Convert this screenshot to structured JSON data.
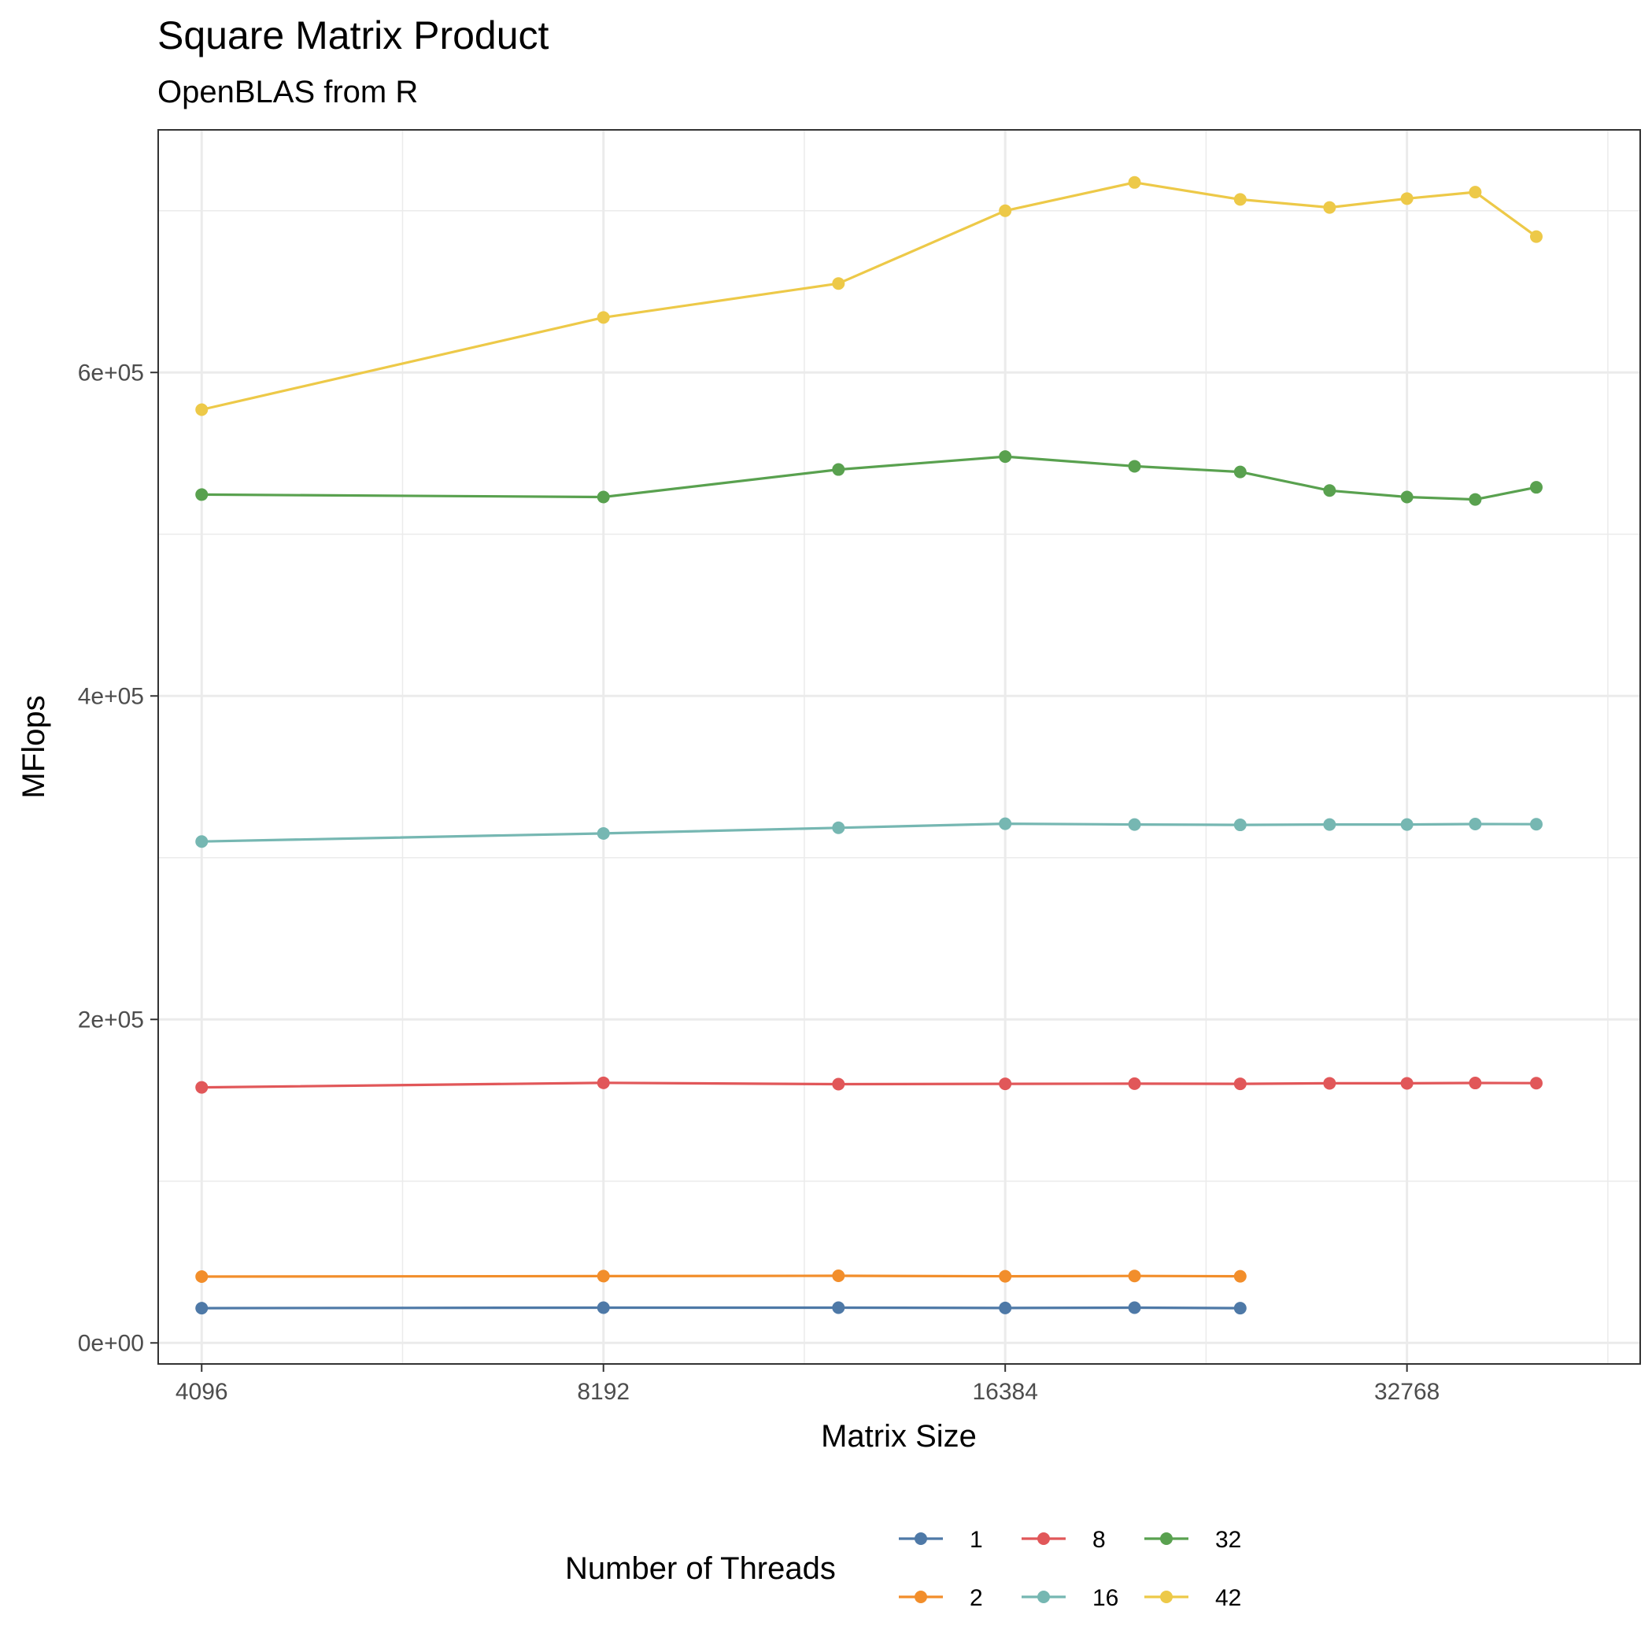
{
  "chart_data": {
    "type": "line",
    "title": "Square Matrix Product",
    "subtitle": "OpenBLAS from R",
    "xlabel": "Matrix Size",
    "ylabel": "MFlops",
    "x_scale": "log2",
    "xlim": [
      3800,
      49000
    ],
    "ylim": [
      -13000,
      750000
    ],
    "x_ticks": [
      4096,
      8192,
      16384,
      32768
    ],
    "x_tick_labels": [
      "4096",
      "8192",
      "16384",
      "32768"
    ],
    "y_ticks": [
      0,
      200000,
      400000,
      600000
    ],
    "y_tick_labels": [
      "0e+00",
      "2e+05",
      "4e+05",
      "6e+05"
    ],
    "grid": true,
    "legend": {
      "title": "Number of Threads",
      "position": "bottom"
    },
    "series": [
      {
        "name": "1",
        "color": "#4e79a7",
        "x": [
          4096,
          8192,
          12288,
          16384,
          20480,
          24576
        ],
        "y": [
          21500,
          21800,
          21800,
          21600,
          21800,
          21500
        ]
      },
      {
        "name": "2",
        "color": "#f28e2b",
        "x": [
          4096,
          8192,
          12288,
          16384,
          20480,
          24576
        ],
        "y": [
          41000,
          41300,
          41500,
          41200,
          41400,
          41200
        ]
      },
      {
        "name": "8",
        "color": "#e15759",
        "x": [
          4096,
          8192,
          12288,
          16384,
          20480,
          24576,
          28672,
          32768,
          36864,
          40960
        ],
        "y": [
          158000,
          160800,
          160000,
          160200,
          160300,
          160200,
          160500,
          160500,
          160700,
          160600
        ]
      },
      {
        "name": "16",
        "color": "#76b7b2",
        "x": [
          4096,
          8192,
          12288,
          16384,
          20480,
          24576,
          28672,
          32768,
          36864,
          40960
        ],
        "y": [
          310000,
          315000,
          318500,
          321000,
          320500,
          320300,
          320500,
          320500,
          320800,
          320700
        ]
      },
      {
        "name": "32",
        "color": "#59a14f",
        "x": [
          4096,
          8192,
          12288,
          16384,
          20480,
          24576,
          28672,
          32768,
          36864,
          40960
        ],
        "y": [
          524500,
          523000,
          540000,
          548000,
          542000,
          538500,
          527000,
          523000,
          521500,
          529000
        ]
      },
      {
        "name": "42",
        "color": "#edc948",
        "x": [
          4096,
          8192,
          12288,
          16384,
          20480,
          24576,
          28672,
          32768,
          36864,
          40960
        ],
        "y": [
          577000,
          634000,
          655000,
          700000,
          717500,
          707000,
          702000,
          707500,
          711500,
          684000
        ]
      }
    ]
  }
}
